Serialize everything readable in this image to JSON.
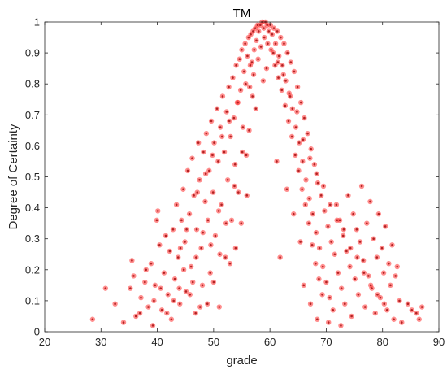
{
  "chart_data": {
    "type": "scatter",
    "title": "TM",
    "xlabel": "grade",
    "ylabel": "Degree of Certainty",
    "xlim": [
      20,
      90
    ],
    "ylim": [
      0,
      1
    ],
    "xticks": [
      "20",
      "30",
      "40",
      "50",
      "60",
      "70",
      "80",
      "90"
    ],
    "yticks": [
      "0",
      "0.1",
      "0.2",
      "0.3",
      "0.4",
      "0.5",
      "0.6",
      "0.7",
      "0.8",
      "0.9",
      "1"
    ],
    "grid": false,
    "marker_color": "#b22222",
    "halo_color": "#ff3030",
    "series": [
      {
        "points": [
          [
            28.5,
            0.04
          ],
          [
            30.8,
            0.14
          ],
          [
            32.5,
            0.09
          ],
          [
            34.0,
            0.03
          ],
          [
            35.5,
            0.23
          ],
          [
            35.8,
            0.18
          ],
          [
            36.2,
            0.05
          ],
          [
            37.1,
            0.11
          ],
          [
            37.8,
            0.16
          ],
          [
            38.4,
            0.08
          ],
          [
            38.9,
            0.22
          ],
          [
            39.2,
            0.02
          ],
          [
            39.6,
            0.15
          ],
          [
            39.9,
            0.36
          ],
          [
            40.1,
            0.39
          ],
          [
            40.4,
            0.28
          ],
          [
            40.8,
            0.07
          ],
          [
            41.2,
            0.19
          ],
          [
            41.5,
            0.31
          ],
          [
            41.9,
            0.12
          ],
          [
            42.2,
            0.26
          ],
          [
            42.5,
            0.04
          ],
          [
            42.8,
            0.33
          ],
          [
            43.1,
            0.17
          ],
          [
            43.4,
            0.41
          ],
          [
            43.7,
            0.24
          ],
          [
            44.0,
            0.09
          ],
          [
            44.3,
            0.36
          ],
          [
            44.6,
            0.46
          ],
          [
            44.9,
            0.29
          ],
          [
            45.1,
            0.13
          ],
          [
            45.4,
            0.52
          ],
          [
            45.7,
            0.38
          ],
          [
            46.0,
            0.21
          ],
          [
            46.2,
            0.56
          ],
          [
            46.5,
            0.44
          ],
          [
            46.8,
            0.06
          ],
          [
            47.0,
            0.33
          ],
          [
            47.3,
            0.61
          ],
          [
            47.5,
            0.49
          ],
          [
            47.8,
            0.27
          ],
          [
            48.0,
            0.15
          ],
          [
            48.2,
            0.58
          ],
          [
            48.5,
            0.42
          ],
          [
            48.7,
            0.64
          ],
          [
            49.0,
            0.36
          ],
          [
            49.2,
            0.52
          ],
          [
            49.4,
            0.19
          ],
          [
            49.6,
            0.68
          ],
          [
            49.9,
            0.45
          ],
          [
            50.1,
            0.61
          ],
          [
            50.3,
            0.31
          ],
          [
            50.6,
            0.72
          ],
          [
            50.8,
            0.55
          ],
          [
            51.0,
            0.08
          ],
          [
            51.2,
            0.66
          ],
          [
            51.4,
            0.41
          ],
          [
            51.6,
            0.76
          ],
          [
            51.9,
            0.58
          ],
          [
            52.1,
            0.24
          ],
          [
            52.3,
            0.71
          ],
          [
            52.5,
            0.49
          ],
          [
            52.7,
            0.79
          ],
          [
            53.0,
            0.63
          ],
          [
            53.2,
            0.36
          ],
          [
            53.4,
            0.82
          ],
          [
            53.6,
            0.69
          ],
          [
            53.8,
            0.54
          ],
          [
            54.0,
            0.86
          ],
          [
            54.2,
            0.74
          ],
          [
            54.4,
            0.45
          ],
          [
            54.6,
            0.88
          ],
          [
            54.8,
            0.78
          ],
          [
            55.0,
            0.91
          ],
          [
            55.2,
            0.66
          ],
          [
            55.4,
            0.84
          ],
          [
            55.6,
            0.93
          ],
          [
            55.8,
            0.57
          ],
          [
            56.0,
            0.89
          ],
          [
            56.2,
            0.95
          ],
          [
            56.4,
            0.79
          ],
          [
            56.6,
            0.96
          ],
          [
            56.8,
            0.87
          ],
          [
            57.0,
            0.97
          ],
          [
            57.2,
            0.91
          ],
          [
            57.4,
            0.98
          ],
          [
            57.6,
            0.94
          ],
          [
            57.8,
            0.99
          ],
          [
            58.0,
            0.97
          ],
          [
            58.3,
            0.99
          ],
          [
            58.6,
            1.0
          ],
          [
            58.9,
            0.98
          ],
          [
            59.2,
            1.0
          ],
          [
            59.5,
            0.99
          ],
          [
            59.8,
            0.97
          ],
          [
            60.1,
            0.99
          ],
          [
            60.4,
            0.96
          ],
          [
            60.7,
            0.98
          ],
          [
            61.0,
            0.93
          ],
          [
            61.3,
            0.97
          ],
          [
            61.6,
            0.89
          ],
          [
            61.9,
            0.95
          ],
          [
            62.2,
            0.86
          ],
          [
            62.5,
            0.93
          ],
          [
            62.8,
            0.81
          ],
          [
            63.1,
            0.9
          ],
          [
            63.4,
            0.77
          ],
          [
            63.7,
            0.87
          ],
          [
            64.0,
            0.72
          ],
          [
            64.3,
            0.84
          ],
          [
            64.6,
            0.66
          ],
          [
            64.9,
            0.79
          ],
          [
            65.2,
            0.61
          ],
          [
            65.5,
            0.74
          ],
          [
            65.8,
            0.55
          ],
          [
            66.1,
            0.69
          ],
          [
            66.4,
            0.49
          ],
          [
            66.7,
            0.64
          ],
          [
            67.0,
            0.43
          ],
          [
            67.3,
            0.59
          ],
          [
            67.6,
            0.38
          ],
          [
            67.9,
            0.54
          ],
          [
            68.2,
            0.32
          ],
          [
            68.5,
            0.48
          ],
          [
            68.8,
            0.27
          ],
          [
            69.1,
            0.44
          ],
          [
            69.4,
            0.21
          ],
          [
            69.7,
            0.39
          ],
          [
            70.0,
            0.16
          ],
          [
            70.3,
            0.34
          ],
          [
            70.6,
            0.11
          ],
          [
            70.9,
            0.29
          ],
          [
            71.2,
            0.07
          ],
          [
            71.5,
            0.25
          ],
          [
            71.8,
            0.41
          ],
          [
            72.1,
            0.19
          ],
          [
            72.4,
            0.36
          ],
          [
            72.7,
            0.14
          ],
          [
            73.0,
            0.31
          ],
          [
            73.3,
            0.09
          ],
          [
            73.6,
            0.26
          ],
          [
            73.9,
            0.44
          ],
          [
            74.2,
            0.21
          ],
          [
            74.5,
            0.05
          ],
          [
            74.8,
            0.38
          ],
          [
            75.1,
            0.17
          ],
          [
            75.4,
            0.33
          ],
          [
            75.7,
            0.12
          ],
          [
            76.0,
            0.29
          ],
          [
            76.3,
            0.47
          ],
          [
            76.6,
            0.23
          ],
          [
            76.9,
            0.08
          ],
          [
            77.2,
            0.35
          ],
          [
            77.5,
            0.18
          ],
          [
            77.8,
            0.42
          ],
          [
            78.1,
            0.14
          ],
          [
            78.4,
            0.3
          ],
          [
            78.7,
            0.06
          ],
          [
            79.0,
            0.24
          ],
          [
            79.3,
            0.38
          ],
          [
            79.6,
            0.11
          ],
          [
            79.9,
            0.27
          ],
          [
            80.2,
            0.19
          ],
          [
            80.5,
            0.34
          ],
          [
            80.8,
            0.07
          ],
          [
            81.1,
            0.22
          ],
          [
            81.4,
            0.15
          ],
          [
            81.7,
            0.28
          ],
          [
            82.0,
            0.04
          ],
          [
            82.3,
            0.18
          ],
          [
            82.6,
            0.21
          ],
          [
            83.0,
            0.1
          ],
          [
            83.4,
            0.03
          ],
          [
            84.5,
            0.09
          ],
          [
            85.2,
            0.07
          ],
          [
            86.0,
            0.06
          ],
          [
            86.5,
            0.04
          ],
          [
            87.0,
            0.08
          ],
          [
            45.8,
            0.12
          ],
          [
            47.6,
            0.08
          ],
          [
            49.5,
            0.28
          ],
          [
            50.9,
            0.39
          ],
          [
            52.9,
            0.22
          ],
          [
            53.9,
            0.27
          ],
          [
            54.9,
            0.35
          ],
          [
            55.9,
            0.44
          ],
          [
            57.1,
            0.83
          ],
          [
            56.9,
            0.76
          ],
          [
            57.9,
            0.88
          ],
          [
            58.4,
            0.92
          ],
          [
            59.0,
            0.95
          ],
          [
            59.6,
            0.93
          ],
          [
            60.2,
            0.91
          ],
          [
            60.9,
            0.86
          ],
          [
            61.5,
            0.82
          ],
          [
            62.1,
            0.78
          ],
          [
            62.7,
            0.73
          ],
          [
            63.3,
            0.68
          ],
          [
            63.9,
            0.63
          ],
          [
            64.5,
            0.57
          ],
          [
            65.1,
            0.52
          ],
          [
            65.7,
            0.46
          ],
          [
            66.3,
            0.41
          ],
          [
            66.9,
            0.35
          ],
          [
            67.5,
            0.28
          ],
          [
            68.1,
            0.22
          ],
          [
            68.7,
            0.17
          ],
          [
            69.3,
            0.12
          ],
          [
            66.0,
            0.15
          ],
          [
            67.2,
            0.09
          ],
          [
            68.4,
            0.04
          ],
          [
            70.4,
            0.03
          ],
          [
            72.6,
            0.02
          ],
          [
            61.8,
            0.24
          ],
          [
            63.0,
            0.46
          ],
          [
            64.2,
            0.38
          ],
          [
            65.4,
            0.29
          ],
          [
            61.2,
            0.55
          ],
          [
            58.8,
            0.81
          ],
          [
            59.4,
            0.85
          ],
          [
            57.5,
            0.72
          ],
          [
            56.3,
            0.65
          ],
          [
            55.1,
            0.58
          ],
          [
            53.7,
            0.47
          ],
          [
            52.2,
            0.35
          ],
          [
            51.1,
            0.25
          ],
          [
            50.0,
            0.16
          ],
          [
            48.9,
            0.09
          ],
          [
            48.1,
            0.32
          ],
          [
            46.9,
            0.24
          ],
          [
            46.3,
            0.16
          ],
          [
            44.7,
            0.2
          ],
          [
            43.9,
            0.14
          ],
          [
            42.9,
            0.1
          ],
          [
            41.7,
            0.06
          ],
          [
            40.6,
            0.14
          ],
          [
            39.4,
            0.1
          ],
          [
            38.0,
            0.2
          ],
          [
            36.9,
            0.06
          ],
          [
            35.2,
            0.14
          ],
          [
            44.1,
            0.27
          ],
          [
            45.2,
            0.33
          ],
          [
            47.1,
            0.45
          ],
          [
            48.6,
            0.51
          ],
          [
            49.8,
            0.57
          ],
          [
            51.5,
            0.63
          ],
          [
            52.8,
            0.68
          ],
          [
            54.3,
            0.74
          ],
          [
            55.7,
            0.8
          ],
          [
            56.5,
            0.86
          ],
          [
            60.6,
            0.9
          ],
          [
            61.4,
            0.87
          ],
          [
            62.4,
            0.83
          ],
          [
            63.6,
            0.76
          ],
          [
            64.8,
            0.71
          ],
          [
            65.9,
            0.62
          ],
          [
            67.1,
            0.56
          ],
          [
            68.3,
            0.51
          ],
          [
            69.5,
            0.47
          ],
          [
            70.7,
            0.41
          ],
          [
            71.9,
            0.36
          ],
          [
            73.1,
            0.33
          ],
          [
            74.3,
            0.27
          ],
          [
            75.5,
            0.24
          ],
          [
            76.7,
            0.19
          ],
          [
            77.9,
            0.15
          ],
          [
            79.1,
            0.12
          ],
          [
            80.3,
            0.09
          ]
        ]
      }
    ]
  }
}
